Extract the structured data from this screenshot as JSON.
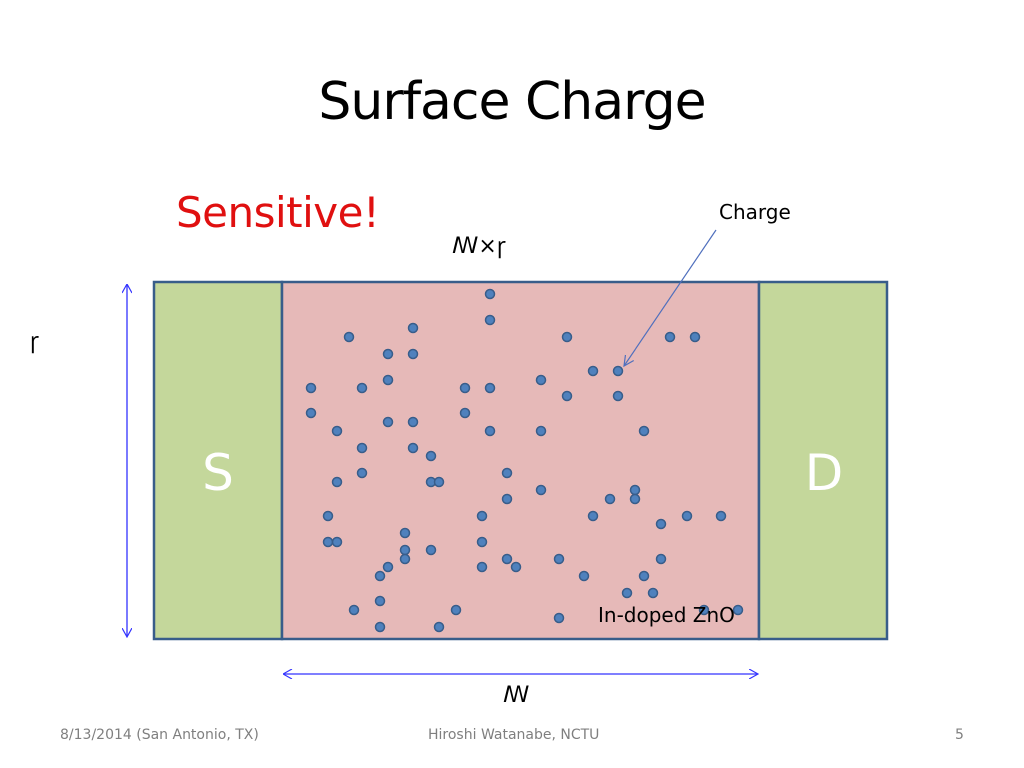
{
  "title": "Surface Charge",
  "sensitive_text": "Sensitive!",
  "charge_label": "Charge",
  "source_label": "S",
  "drain_label": "D",
  "channel_label": "In-doped ZnO",
  "area_label": "ꟿ×ꞅ",
  "width_label": "ꞅ",
  "length_label": "ꟿ",
  "footer": {
    "date_location": "8/13/2014 (San Antonio, TX)",
    "author": "Hiroshi Watanabe, NCTU",
    "page_number": "5"
  },
  "colors": {
    "title_text": "#000000",
    "sensitive_text": "#e01010",
    "electrode_fill": "#c4d79b",
    "channel_fill": "#e6b9b8",
    "outline": "#385d8a",
    "charge_dot": "#4f81bd",
    "arrow": "#3333ff",
    "footer_text": "#7f7f7f"
  },
  "charges_count_note": null
}
